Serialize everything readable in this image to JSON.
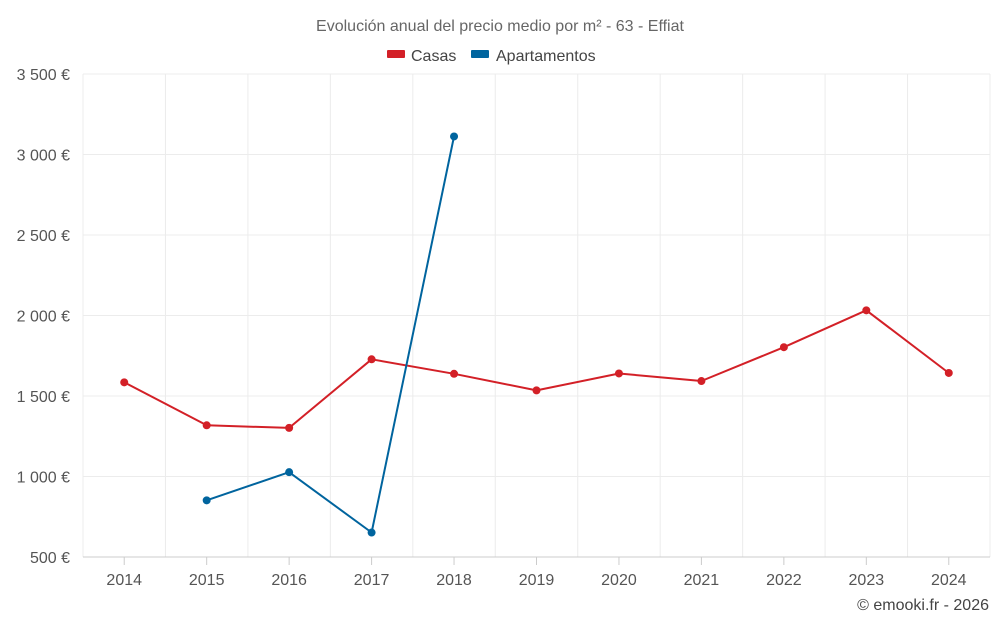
{
  "chart_data": {
    "type": "line",
    "title": "Evolución anual del precio medio por m² - 63 - Effiat",
    "categories": [
      "2014",
      "2015",
      "2016",
      "2017",
      "2018",
      "2019",
      "2020",
      "2021",
      "2022",
      "2023",
      "2024"
    ],
    "y_ticks": [
      500,
      1000,
      1500,
      2000,
      2500,
      3000,
      3500
    ],
    "y_tick_labels": [
      "500 €",
      "1 000 €",
      "1 500 €",
      "2 000 €",
      "2 500 €",
      "3 000 €",
      "3 500 €"
    ],
    "ylim": [
      500,
      3500
    ],
    "grid": true,
    "legend_position": "top-center",
    "series": [
      {
        "name": "Casas",
        "color": "#d32027",
        "values": [
          1585,
          1318,
          1302,
          1728,
          1638,
          1535,
          1640,
          1593,
          1803,
          2032,
          1643
        ]
      },
      {
        "name": "Apartamentos",
        "color": "#00649e",
        "values": [
          null,
          852,
          1027,
          652,
          3112,
          null,
          null,
          null,
          null,
          null,
          null
        ]
      }
    ],
    "credit": "© emooki.fr - 2026"
  }
}
